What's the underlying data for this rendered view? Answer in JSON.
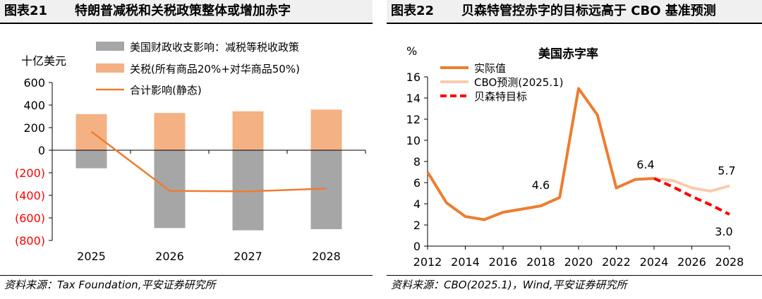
{
  "left": {
    "figure_no": "图表21",
    "figure_title": "特朗普减税和关税政策整体或增加赤字",
    "source": "资料来源：Tax Foundation,平安证券研究所"
  },
  "right": {
    "figure_no": "图表22",
    "figure_title": "贝森特管控赤字的目标远高于 CBO 基准预测",
    "source": "资料来源：CBO(2025.1)，Wind,平安证券研究所"
  },
  "colors": {
    "gray_bar": "#a6a6a6",
    "tariff_bar": "#f4b183",
    "orange_line": "#ed7d31",
    "cbo_line": "#f8cbad",
    "target_line": "#ff0000",
    "negative_tick": "#ff0000"
  },
  "chart_data": [
    {
      "type": "bar",
      "unit_label": "十亿美元",
      "categories": [
        "2025",
        "2026",
        "2027",
        "2028"
      ],
      "ylim": [
        -800,
        600
      ],
      "yticks": [
        "600",
        "400",
        "200",
        "0",
        "(200)",
        "(400)",
        "(600)",
        "(800)"
      ],
      "ytick_values": [
        600,
        400,
        200,
        0,
        -200,
        -400,
        -600,
        -800
      ],
      "series": [
        {
          "name": "美国财政收支影响：减税等税收政策",
          "type": "bar",
          "values": [
            -160,
            -690,
            -710,
            -700
          ]
        },
        {
          "name": "关税(所有商品20%+对华商品50%)",
          "type": "bar",
          "values": [
            320,
            330,
            345,
            360
          ]
        },
        {
          "name": "合计影响(静态)",
          "type": "line",
          "values": [
            165,
            -360,
            -365,
            -340
          ]
        }
      ],
      "legend_position": "top"
    },
    {
      "type": "line",
      "title": "美国赤字率",
      "unit_label": "%",
      "xlim": [
        2012,
        2028
      ],
      "xticks": [
        "2012",
        "2014",
        "2016",
        "2018",
        "2020",
        "2022",
        "2024",
        "2026",
        "2028"
      ],
      "xtick_values": [
        2012,
        2014,
        2016,
        2018,
        2020,
        2022,
        2024,
        2026,
        2028
      ],
      "ylim": [
        0,
        16
      ],
      "yticks": [
        "0",
        "2",
        "4",
        "6",
        "8",
        "10",
        "12",
        "14",
        "16"
      ],
      "ytick_values": [
        0,
        2,
        4,
        6,
        8,
        10,
        12,
        14,
        16
      ],
      "series": [
        {
          "name": "实际值",
          "x": [
            2012,
            2013,
            2014,
            2015,
            2016,
            2017,
            2018,
            2019,
            2020,
            2021,
            2022,
            2023,
            2024
          ],
          "values": [
            7.0,
            4.1,
            2.8,
            2.5,
            3.2,
            3.5,
            3.8,
            4.6,
            14.9,
            12.4,
            5.5,
            6.3,
            6.4
          ]
        },
        {
          "name": "CBO预测(2025.1)",
          "x": [
            2024,
            2025,
            2026,
            2027,
            2028
          ],
          "values": [
            6.4,
            6.2,
            5.5,
            5.2,
            5.7
          ]
        },
        {
          "name": "贝森特目标",
          "x": [
            2024,
            2025,
            2026,
            2027,
            2028
          ],
          "values": [
            6.4,
            5.6,
            4.7,
            3.9,
            3.0
          ]
        }
      ],
      "annotations": [
        {
          "text": "4.6",
          "x": 2018,
          "y": 4.6
        },
        {
          "text": "6.4",
          "x": 2024,
          "y": 6.4
        },
        {
          "text": "5.7",
          "x": 2028,
          "y": 5.7
        },
        {
          "text": "3.0",
          "x": 2028,
          "y": 3.0
        }
      ],
      "legend_position": "top-left"
    }
  ]
}
